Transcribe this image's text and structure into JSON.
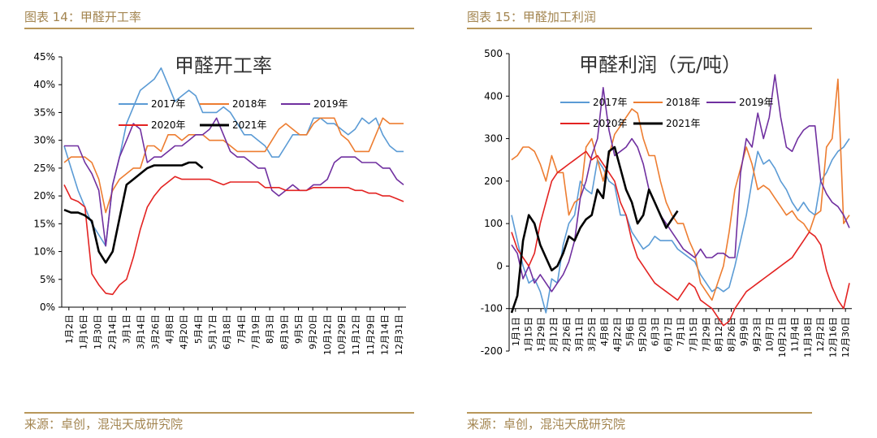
{
  "panels": [
    {
      "header": "图表 14：甲醛开工率",
      "footer": "来源：卓创，混沌天成研究院"
    },
    {
      "header": "图表 15：甲醛加工利润",
      "footer": "来源：卓创，混沌天成研究院"
    }
  ],
  "chart_data": [
    {
      "type": "line",
      "title": "甲醛开工率",
      "xlabel": "",
      "ylabel": "",
      "ylim": [
        0,
        45
      ],
      "y_tick_labels": [
        "0%",
        "5%",
        "10%",
        "15%",
        "20%",
        "25%",
        "30%",
        "35%",
        "40%",
        "45%"
      ],
      "x_tick_labels": [
        "1月2日",
        "1月16日",
        "1月30日",
        "2月14日",
        "3月1日",
        "3月14日",
        "3月26日",
        "4月8日",
        "4月20日",
        "5月4日",
        "5月17日",
        "6月18日",
        "7月4日",
        "7月19日",
        "8月3日",
        "8月19日",
        "9月5日",
        "9月20日",
        "10月12日",
        "10月29日",
        "11月12日",
        "11月29日",
        "12月14日",
        "12月31日"
      ],
      "legend_position": "top-center",
      "grid": false,
      "series": [
        {
          "name": "2017年",
          "color": "#5b9bd5",
          "y": [
            29,
            25,
            21,
            18,
            15,
            13,
            11,
            22,
            27,
            33,
            36,
            39,
            40,
            41,
            43,
            40,
            37,
            38,
            39,
            38,
            35,
            35,
            35,
            36,
            35,
            33,
            31,
            31,
            30,
            29,
            27,
            27,
            29,
            31,
            31,
            31,
            34,
            34,
            33,
            33,
            32,
            31,
            32,
            34,
            33,
            34,
            31,
            29,
            28,
            28
          ]
        },
        {
          "name": "2018年",
          "color": "#ed7d31",
          "y": [
            26,
            27,
            27,
            27,
            26,
            23,
            17,
            21,
            23,
            24,
            25,
            25,
            29,
            29,
            28,
            31,
            31,
            30,
            31,
            31,
            31,
            30,
            30,
            30,
            29,
            28,
            28,
            28,
            28,
            28,
            30,
            32,
            33,
            32,
            31,
            31,
            33,
            34,
            34,
            34,
            31,
            30,
            28,
            28,
            28,
            31,
            34,
            33,
            33,
            33
          ]
        },
        {
          "name": "2019年",
          "color": "#7030a0",
          "y": [
            29,
            29,
            29,
            26,
            24,
            21,
            11,
            22,
            27,
            30,
            33,
            32,
            26,
            27,
            27,
            28,
            29,
            29,
            30,
            31,
            31,
            32,
            34,
            31,
            28,
            27,
            27,
            26,
            25,
            25,
            21,
            20,
            21,
            22,
            21,
            21,
            22,
            22,
            23,
            26,
            27,
            27,
            27,
            26,
            26,
            26,
            25,
            25,
            23,
            22
          ]
        },
        {
          "name": "2020年",
          "color": "#e32322",
          "y": [
            22,
            19.5,
            19,
            18,
            6,
            4,
            2.5,
            2.3,
            4,
            5,
            9,
            14,
            18,
            20,
            21.5,
            22.5,
            23.5,
            23,
            23,
            23,
            23,
            23,
            22.5,
            22,
            22.5,
            22.5,
            22.5,
            22.5,
            22.5,
            21.5,
            21.5,
            21.5,
            21,
            21,
            21,
            21,
            21.5,
            21.5,
            21.5,
            21.5,
            21.5,
            21.5,
            21,
            21,
            20.5,
            20.5,
            20,
            20,
            19.5,
            19
          ]
        },
        {
          "name": "2021年",
          "color": "#000000",
          "y": [
            17.5,
            17,
            17,
            16.5,
            15.5,
            10,
            8,
            10,
            16,
            22,
            23,
            24,
            25,
            25.5,
            25.5,
            25.5,
            25.5,
            25.5,
            26,
            26,
            25
          ]
        }
      ]
    },
    {
      "type": "line",
      "title": "甲醛利润（元/吨）",
      "xlabel": "",
      "ylabel": "",
      "ylim": [
        -200,
        500
      ],
      "y_tick_labels": [
        "-200",
        "-100",
        "0",
        "100",
        "200",
        "300",
        "400",
        "500"
      ],
      "x_tick_labels": [
        "1月1日",
        "1月15日",
        "1月29日",
        "2月12日",
        "2月26日",
        "3月11日",
        "3月25日",
        "4月8日",
        "4月22日",
        "5月6日",
        "5月20日",
        "6月3日",
        "6月17日",
        "7月1日",
        "7月15日",
        "7月29日",
        "8月12日",
        "8月26日",
        "9月9日",
        "9月23日",
        "10月7日",
        "10月21日",
        "11月4日",
        "11月18日",
        "12月2日",
        "12月16日",
        "12月30日"
      ],
      "legend_position": "top-center",
      "grid": false,
      "series": [
        {
          "name": "2017年",
          "color": "#5b9bd5",
          "y": [
            120,
            60,
            0,
            -40,
            -30,
            -60,
            -110,
            -30,
            -40,
            50,
            100,
            120,
            200,
            180,
            170,
            250,
            230,
            200,
            190,
            120,
            120,
            80,
            60,
            40,
            50,
            70,
            60,
            60,
            60,
            40,
            30,
            20,
            10,
            -20,
            -40,
            -60,
            -50,
            -60,
            -50,
            0,
            60,
            120,
            200,
            270,
            240,
            250,
            230,
            200,
            180,
            150,
            130,
            150,
            130,
            120,
            200,
            220,
            250,
            270,
            280,
            300
          ]
        },
        {
          "name": "2018年",
          "color": "#ed7d31",
          "y": [
            250,
            260,
            280,
            280,
            270,
            240,
            200,
            260,
            220,
            220,
            120,
            150,
            160,
            280,
            300,
            250,
            200,
            260,
            310,
            330,
            350,
            370,
            360,
            300,
            260,
            260,
            200,
            150,
            120,
            100,
            100,
            60,
            30,
            -40,
            -60,
            -80,
            -40,
            0,
            80,
            180,
            230,
            280,
            240,
            180,
            190,
            180,
            160,
            140,
            120,
            130,
            110,
            100,
            80,
            120,
            130,
            280,
            300,
            440,
            100,
            120
          ]
        },
        {
          "name": "2019年",
          "color": "#7030a0",
          "y": [
            50,
            30,
            -30,
            0,
            -40,
            -20,
            -40,
            -60,
            -40,
            -20,
            10,
            60,
            160,
            200,
            260,
            300,
            420,
            320,
            260,
            270,
            280,
            300,
            280,
            240,
            180,
            150,
            120,
            100,
            80,
            60,
            40,
            30,
            20,
            40,
            20,
            20,
            30,
            30,
            20,
            20,
            220,
            300,
            280,
            360,
            300,
            350,
            450,
            350,
            280,
            270,
            300,
            320,
            330,
            330,
            200,
            170,
            150,
            140,
            120,
            90
          ]
        },
        {
          "name": "2020年",
          "color": "#e32322",
          "y": [
            80,
            40,
            20,
            0,
            30,
            100,
            150,
            200,
            220,
            230,
            240,
            250,
            260,
            270,
            250,
            260,
            240,
            220,
            200,
            150,
            120,
            60,
            20,
            0,
            -20,
            -40,
            -50,
            -60,
            -70,
            -80,
            -60,
            -40,
            -50,
            -80,
            -90,
            -100,
            -120,
            -140,
            -130,
            -100,
            -80,
            -60,
            -50,
            -40,
            -30,
            -20,
            -10,
            0,
            10,
            20,
            40,
            60,
            80,
            70,
            50,
            -10,
            -50,
            -80,
            -100,
            -40
          ]
        },
        {
          "name": "2021年",
          "color": "#000000",
          "y": [
            -110,
            -70,
            60,
            120,
            100,
            50,
            20,
            -10,
            0,
            30,
            70,
            60,
            90,
            110,
            120,
            180,
            160,
            270,
            280,
            230,
            180,
            150,
            100,
            120,
            180,
            150,
            120,
            90,
            110,
            130
          ]
        }
      ]
    }
  ]
}
